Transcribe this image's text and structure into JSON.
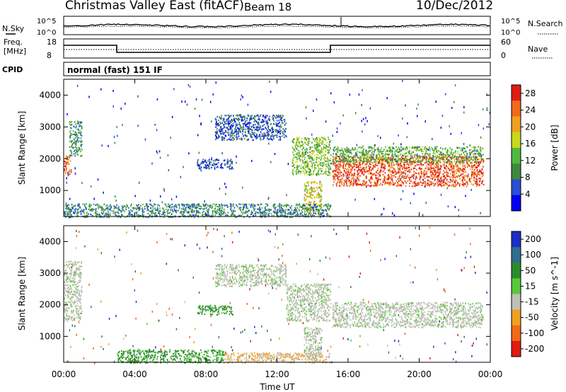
{
  "header": {
    "title": "Christmas Valley East (fitACF)",
    "beam": "Beam 18",
    "date": "10/Dec/2012"
  },
  "scan_panels": {
    "nsky_label": "N.Sky",
    "nsky_ticks": [
      "10^5",
      "10^0"
    ],
    "nsearch_label": "N.Search",
    "nsearch_ticks": [
      "10^5",
      "10^0"
    ],
    "freq_label_1": "Freq.",
    "freq_label_2": "[MHz]",
    "freq_ticks": [
      "18",
      "8"
    ],
    "nave_label": "Nave",
    "nave_ticks": [
      "60",
      "0"
    ],
    "cpid_label": "CPID",
    "cpid_value": "normal (fast) 151 IF"
  },
  "chart_data": [
    {
      "type": "heatmap",
      "name": "power-panel",
      "xlabel": "Time UT",
      "ylabel": "Slant Range [km]",
      "x_ticks": [
        "00:00",
        "04:00",
        "08:00",
        "12:00",
        "16:00",
        "20:00",
        "00:00"
      ],
      "xlim_hours": [
        0,
        24
      ],
      "y_ticks": [
        1000,
        2000,
        3000,
        4000
      ],
      "ylim": [
        180,
        4500
      ],
      "colorbar": {
        "label": "Power [dB]",
        "ticks": [
          4,
          8,
          12,
          16,
          20,
          24,
          28
        ],
        "range": [
          0,
          30
        ],
        "colors": [
          "#0000ee",
          "#2a4fd6",
          "#3d8a3d",
          "#4fb83f",
          "#c8d81c",
          "#f0a020",
          "#f06a18",
          "#e21a12"
        ]
      },
      "regions": [
        {
          "t0": 15.1,
          "t1": 23.6,
          "r_lo": 1150,
          "r_hi": 2100,
          "level": 26
        },
        {
          "t0": 15.1,
          "t1": 23.6,
          "r_lo": 1900,
          "r_hi": 2400,
          "level": 12
        },
        {
          "t0": 0.0,
          "t1": 0.4,
          "r_lo": 1500,
          "r_hi": 2100,
          "level": 24
        },
        {
          "t0": 0.3,
          "t1": 1.0,
          "r_lo": 2100,
          "r_hi": 3200,
          "level": 10
        },
        {
          "t0": 13.5,
          "t1": 14.5,
          "r_lo": 300,
          "r_hi": 1300,
          "level": 18
        },
        {
          "t0": 8.5,
          "t1": 12.5,
          "r_lo": 2600,
          "r_hi": 3400,
          "level": 6
        },
        {
          "t0": 7.5,
          "t1": 9.5,
          "r_lo": 1700,
          "r_hi": 2000,
          "level": 5
        },
        {
          "t0": 0.0,
          "t1": 15.0,
          "r_lo": 180,
          "r_hi": 600,
          "level": 9
        },
        {
          "t0": 12.8,
          "t1": 15.0,
          "r_lo": 1500,
          "r_hi": 2700,
          "level": 14
        }
      ]
    },
    {
      "type": "heatmap",
      "name": "velocity-panel",
      "xlabel": "Time UT",
      "ylabel": "Slant Range [km]",
      "x_ticks": [
        "00:00",
        "04:00",
        "08:00",
        "12:00",
        "16:00",
        "20:00",
        "00:00"
      ],
      "xlim_hours": [
        0,
        24
      ],
      "y_ticks": [
        1000,
        2000,
        3000,
        4000
      ],
      "ylim": [
        180,
        4500
      ],
      "colorbar": {
        "label": "Velocity [m s^-1]",
        "ticks": [
          200,
          100,
          50,
          15,
          -15,
          -50,
          -100,
          -200
        ],
        "colors": [
          "#1b2fc8",
          "#2f6e8e",
          "#2c8c2c",
          "#58c838",
          "#c0c0b8",
          "#f0a020",
          "#f06a18",
          "#e21a12"
        ]
      },
      "regions": [
        {
          "t0": 15.1,
          "t1": 23.6,
          "r_lo": 1300,
          "r_hi": 2100,
          "level": 0
        },
        {
          "t0": 0.0,
          "t1": 1.0,
          "r_lo": 1500,
          "r_hi": 3400,
          "level": 0
        },
        {
          "t0": 13.5,
          "t1": 14.5,
          "r_lo": 300,
          "r_hi": 1300,
          "level": 0
        },
        {
          "t0": 8.5,
          "t1": 12.5,
          "r_lo": 2600,
          "r_hi": 3300,
          "level": 0
        },
        {
          "t0": 12.5,
          "t1": 15.0,
          "r_lo": 1500,
          "r_hi": 2700,
          "level": 0
        },
        {
          "t0": 7.5,
          "t1": 9.5,
          "r_lo": 1700,
          "r_hi": 2000,
          "level": 40
        },
        {
          "t0": 3.0,
          "t1": 9.0,
          "r_lo": 180,
          "r_hi": 600,
          "level": 40
        },
        {
          "t0": 9.0,
          "t1": 15.0,
          "r_lo": 180,
          "r_hi": 500,
          "level": -30
        }
      ]
    }
  ]
}
